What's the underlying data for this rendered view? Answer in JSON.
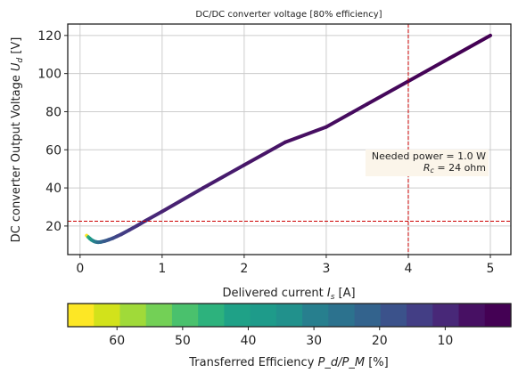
{
  "chart_data": {
    "type": "line",
    "title": "DC/DC converter voltage [80% efficiency]",
    "xlabel": "Delivered current I_s [A]",
    "xlabel_main": "Delivered current ",
    "xlabel_sym": "I",
    "xlabel_sub": "s",
    "xlabel_unit": " [A]",
    "ylabel_main": "DC converter Output Voltage ",
    "ylabel_sym": "U",
    "ylabel_sub": "d",
    "ylabel_unit": " [V]",
    "xlim": [
      -0.15,
      5.25
    ],
    "ylim": [
      5,
      126
    ],
    "xticks": [
      0,
      1,
      2,
      3,
      4,
      5
    ],
    "yticks": [
      20,
      40,
      60,
      80,
      100,
      120
    ],
    "grid": true,
    "reference_lines": {
      "x": 4.0,
      "y": 22.5,
      "color": "#cc0000"
    },
    "annotation": {
      "line1": "Needed power = 1.0 W",
      "line2_sym": "R",
      "line2_sub": "c",
      "line2_rest": " = 24 ohm",
      "placement": "center-right"
    },
    "series": [
      {
        "x": [
          0.08,
          0.1,
          0.12,
          0.14,
          0.16,
          0.18,
          0.2,
          0.22,
          0.25,
          0.28,
          0.3,
          0.35,
          0.4,
          0.45,
          0.5,
          0.6,
          0.7,
          0.8,
          1.0,
          1.5,
          2.0,
          2.5,
          3.0,
          3.5,
          4.0,
          4.5,
          5.0
        ],
        "y": [
          15.0,
          14.2,
          13.4,
          12.7,
          12.2,
          11.8,
          11.6,
          11.5,
          11.6,
          11.9,
          12.1,
          12.8,
          13.6,
          14.6,
          15.6,
          17.9,
          20.3,
          22.8,
          27.6,
          40.0,
          52.0,
          64.0,
          72.0,
          84.0,
          96.0,
          108.0,
          120.0
        ]
      }
    ],
    "colorbar": {
      "label_main": "Transferred Efficiency ",
      "label_sym": "P_d/P_M",
      "label_unit": " [%]",
      "ticks": [
        60,
        50,
        40,
        30,
        20,
        10
      ],
      "range": [
        0,
        67.5
      ],
      "colormap": "viridis-reversed",
      "colors": [
        "#fde725",
        "#d2e21b",
        "#a0da39",
        "#73d056",
        "#4ac16d",
        "#2db27d",
        "#1fa187",
        "#1e9b8a",
        "#21918c",
        "#277f8e",
        "#2c728e",
        "#33638d",
        "#3b528b",
        "#433e85",
        "#482878",
        "#471063",
        "#440154"
      ]
    }
  }
}
